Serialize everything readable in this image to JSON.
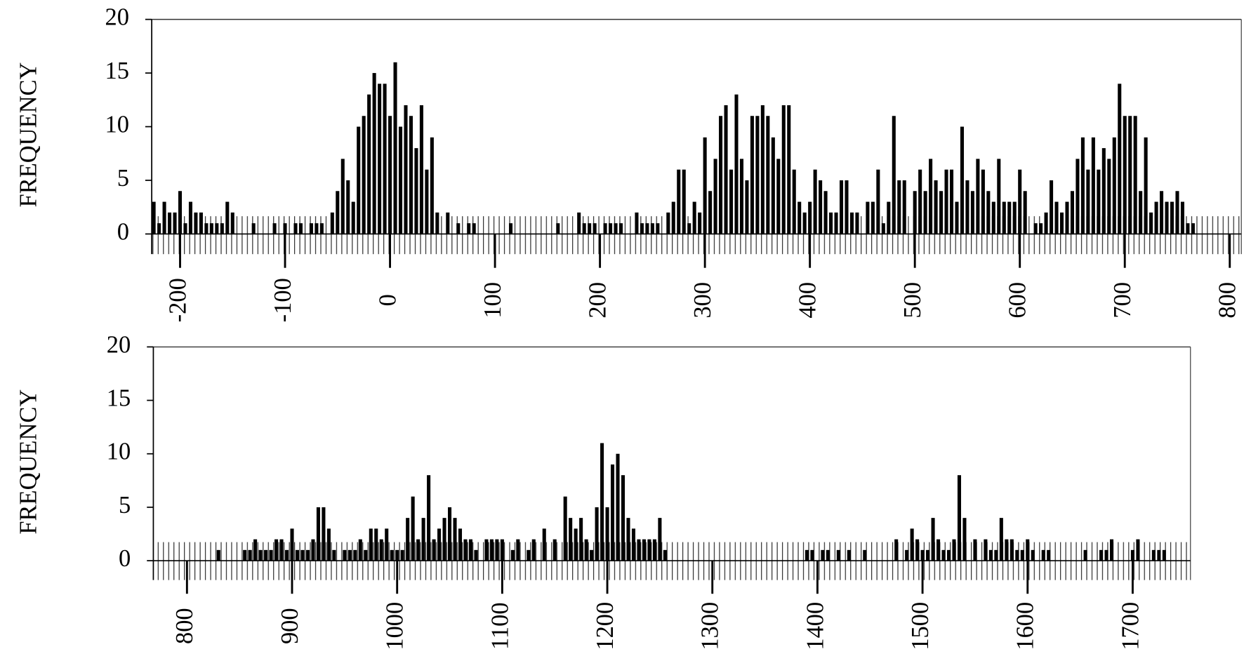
{
  "chart_data": [
    {
      "type": "bar",
      "ylabel": "FREQUENCY",
      "color": "#000000",
      "xlim": [
        -227,
        811
      ],
      "ylim": [
        0,
        20
      ],
      "yticks": [
        0,
        5,
        10,
        15,
        20
      ],
      "xticks": [
        -200,
        -100,
        0,
        100,
        200,
        300,
        400,
        500,
        600,
        700,
        800
      ],
      "x": [
        -225,
        -220,
        -215,
        -210,
        -205,
        -200,
        -195,
        -190,
        -185,
        -180,
        -175,
        -170,
        -165,
        -160,
        -155,
        -150,
        -130,
        -110,
        -100,
        -90,
        -85,
        -75,
        -70,
        -65,
        -55,
        -50,
        -45,
        -40,
        -35,
        -30,
        -25,
        -20,
        -15,
        -10,
        -5,
        0,
        5,
        10,
        15,
        20,
        25,
        30,
        35,
        40,
        45,
        55,
        65,
        75,
        80,
        115,
        160,
        180,
        185,
        190,
        195,
        205,
        210,
        215,
        220,
        235,
        240,
        245,
        250,
        255,
        265,
        270,
        275,
        280,
        285,
        290,
        295,
        300,
        305,
        310,
        315,
        320,
        325,
        330,
        335,
        340,
        345,
        350,
        355,
        360,
        365,
        370,
        375,
        380,
        385,
        390,
        395,
        400,
        405,
        410,
        415,
        420,
        425,
        430,
        435,
        440,
        445,
        455,
        460,
        465,
        470,
        475,
        480,
        485,
        490,
        500,
        505,
        510,
        515,
        520,
        525,
        530,
        535,
        540,
        545,
        550,
        555,
        560,
        565,
        570,
        575,
        580,
        585,
        590,
        595,
        600,
        605,
        615,
        620,
        625,
        630,
        635,
        640,
        645,
        650,
        655,
        660,
        665,
        670,
        675,
        680,
        685,
        690,
        695,
        700,
        705,
        710,
        715,
        720,
        725,
        730,
        735,
        740,
        745,
        750,
        755,
        760,
        765
      ],
      "values": [
        3,
        1,
        3,
        2,
        2,
        4,
        1,
        3,
        2,
        2,
        1,
        1,
        1,
        1,
        3,
        2,
        1,
        1,
        1,
        1,
        1,
        1,
        1,
        1,
        2,
        4,
        7,
        5,
        3,
        10,
        11,
        13,
        15,
        14,
        14,
        11,
        16,
        10,
        12,
        11,
        8,
        12,
        6,
        9,
        2,
        2,
        1,
        1,
        1,
        1,
        1,
        2,
        1,
        1,
        1,
        1,
        1,
        1,
        1,
        2,
        1,
        1,
        1,
        1,
        2,
        3,
        6,
        6,
        1,
        3,
        2,
        9,
        4,
        7,
        11,
        12,
        6,
        13,
        7,
        5,
        11,
        11,
        12,
        11,
        9,
        7,
        12,
        12,
        6,
        3,
        2,
        3,
        6,
        5,
        4,
        2,
        2,
        5,
        5,
        2,
        2,
        3,
        3,
        6,
        1,
        3,
        11,
        5,
        5,
        4,
        6,
        4,
        7,
        5,
        4,
        6,
        6,
        3,
        10,
        5,
        4,
        7,
        6,
        4,
        3,
        7,
        3,
        3,
        3,
        6,
        4,
        1,
        1,
        2,
        5,
        3,
        2,
        3,
        4,
        7,
        9,
        6,
        9,
        6,
        8,
        7,
        9,
        14,
        11,
        11,
        11,
        4,
        9,
        2,
        3,
        4,
        3,
        3,
        4,
        3,
        1,
        1
      ]
    },
    {
      "type": "bar",
      "ylabel": "FREQUENCY",
      "color": "#000000",
      "xlim": [
        768,
        1755
      ],
      "ylim": [
        0,
        20
      ],
      "yticks": [
        0,
        5,
        10,
        15,
        20
      ],
      "xticks": [
        800,
        900,
        1000,
        1100,
        1200,
        1300,
        1400,
        1500,
        1600,
        1700
      ],
      "x": [
        830,
        855,
        860,
        865,
        870,
        875,
        880,
        885,
        890,
        895,
        900,
        905,
        910,
        915,
        920,
        925,
        930,
        935,
        940,
        950,
        955,
        960,
        965,
        970,
        975,
        980,
        985,
        990,
        995,
        1000,
        1005,
        1010,
        1015,
        1020,
        1025,
        1030,
        1035,
        1040,
        1045,
        1050,
        1055,
        1060,
        1065,
        1070,
        1075,
        1085,
        1090,
        1095,
        1100,
        1110,
        1115,
        1125,
        1130,
        1140,
        1150,
        1160,
        1165,
        1170,
        1175,
        1180,
        1185,
        1190,
        1195,
        1200,
        1205,
        1210,
        1215,
        1220,
        1225,
        1230,
        1235,
        1240,
        1245,
        1250,
        1255,
        1390,
        1395,
        1405,
        1410,
        1420,
        1430,
        1445,
        1475,
        1485,
        1490,
        1495,
        1500,
        1505,
        1510,
        1515,
        1520,
        1525,
        1530,
        1535,
        1540,
        1550,
        1560,
        1565,
        1570,
        1575,
        1580,
        1585,
        1590,
        1595,
        1600,
        1605,
        1615,
        1620,
        1655,
        1670,
        1675,
        1680,
        1700,
        1705,
        1720,
        1725,
        1730
      ],
      "values": [
        1,
        1,
        1,
        2,
        1,
        1,
        1,
        2,
        2,
        1,
        3,
        1,
        1,
        1,
        2,
        5,
        5,
        3,
        1,
        1,
        1,
        1,
        2,
        1,
        3,
        3,
        2,
        3,
        1,
        1,
        1,
        4,
        6,
        2,
        4,
        8,
        2,
        3,
        4,
        5,
        4,
        3,
        2,
        2,
        1,
        2,
        2,
        2,
        2,
        1,
        2,
        1,
        2,
        3,
        2,
        6,
        4,
        3,
        4,
        2,
        1,
        5,
        11,
        5,
        9,
        10,
        8,
        4,
        3,
        2,
        2,
        2,
        2,
        4,
        1,
        1,
        1,
        1,
        1,
        1,
        1,
        1,
        2,
        1,
        3,
        2,
        1,
        1,
        4,
        2,
        1,
        1,
        2,
        8,
        4,
        2,
        2,
        1,
        1,
        4,
        2,
        2,
        1,
        1,
        2,
        1,
        1,
        1,
        1,
        1,
        1,
        2,
        1,
        2,
        1,
        1,
        1
      ]
    }
  ]
}
